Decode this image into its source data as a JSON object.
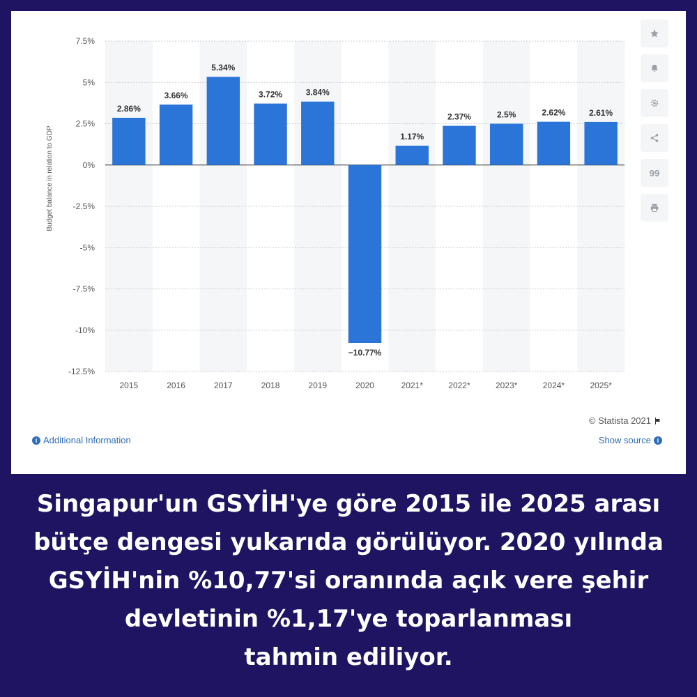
{
  "chart_data": {
    "type": "bar",
    "categories": [
      "2015",
      "2016",
      "2017",
      "2018",
      "2019",
      "2020",
      "2021*",
      "2022*",
      "2023*",
      "2024*",
      "2025*"
    ],
    "values": [
      2.86,
      3.66,
      5.34,
      3.72,
      3.84,
      -10.77,
      1.17,
      2.37,
      2.5,
      2.62,
      2.61
    ],
    "value_labels": [
      "2.86%",
      "3.66%",
      "5.34%",
      "3.72%",
      "3.84%",
      "−10.77%",
      "1.17%",
      "2.37%",
      "2.5%",
      "2.62%",
      "2.61%"
    ],
    "ylabel": "Budget balance in relation to GDP",
    "ylim": [
      -12.5,
      7.5
    ],
    "yticks": [
      7.5,
      5,
      2.5,
      0,
      -2.5,
      -5,
      -7.5,
      -10,
      -12.5
    ],
    "ytick_labels": [
      "7.5%",
      "5%",
      "2.5%",
      "0%",
      "-2.5%",
      "-5%",
      "-7.5%",
      "-10%",
      "-12.5%"
    ],
    "grid": true,
    "bar_color": "#2b74d8"
  },
  "toolbar": {
    "icons": [
      "star-icon",
      "bell-icon",
      "gear-icon",
      "share-icon",
      "quote-icon",
      "print-icon"
    ],
    "quote_glyph": "99"
  },
  "footer": {
    "copyright": "© Statista 2021",
    "additional_info": "Additional Information",
    "show_source": "Show source",
    "info_glyph": "i"
  },
  "caption": {
    "lines": [
      "Singapur'un GSYİH'ye göre 2015 ile 2025 arası",
      "bütçe dengesi yukarıda görülüyor. 2020 yılında",
      "GSYİH'nin %10,77'si oranında açık vere şehir",
      "devletinin %1,17'ye toparlanması",
      "tahmin ediliyor."
    ]
  }
}
